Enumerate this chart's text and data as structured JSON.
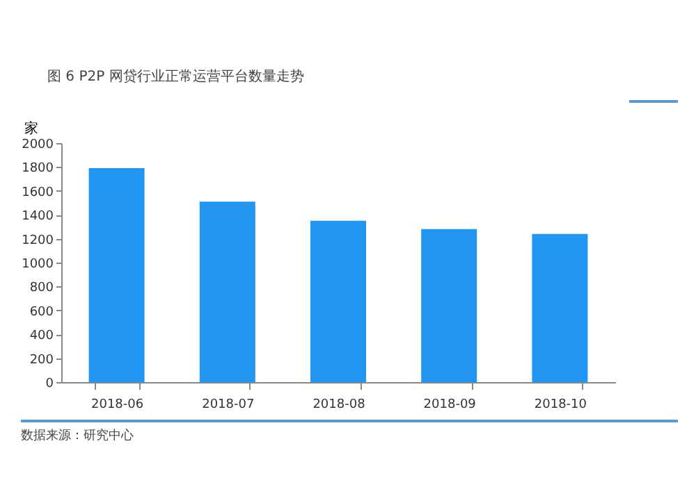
{
  "chart_data": {
    "type": "bar",
    "title": "图 6    P2P 网贷行业正常运营平台数量走势",
    "ylabel": "家",
    "categories": [
      "2018-06",
      "2018-07",
      "2018-08",
      "2018-09",
      "2018-10"
    ],
    "values": [
      1790,
      1510,
      1350,
      1280,
      1240
    ],
    "color": "#2196f3",
    "ylim": [
      0,
      2000
    ],
    "yticks": [
      0,
      200,
      400,
      600,
      800,
      1000,
      1200,
      1400,
      1600,
      1800,
      2000
    ],
    "annotations": [
      "数据来源：研究中心"
    ]
  }
}
